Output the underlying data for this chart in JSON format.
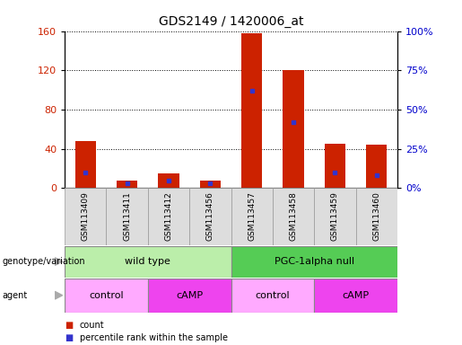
{
  "title": "GDS2149 / 1420006_at",
  "samples": [
    "GSM113409",
    "GSM113411",
    "GSM113412",
    "GSM113456",
    "GSM113457",
    "GSM113458",
    "GSM113459",
    "GSM113460"
  ],
  "counts": [
    48,
    8,
    15,
    8,
    158,
    120,
    45,
    44
  ],
  "percentile_ranks": [
    10,
    3,
    5,
    3,
    62,
    42,
    10,
    8
  ],
  "ylim_left": [
    0,
    160
  ],
  "yticks_left": [
    0,
    40,
    80,
    120,
    160
  ],
  "ylim_right": [
    0,
    100
  ],
  "yticks_right": [
    0,
    25,
    50,
    75,
    100
  ],
  "bar_color": "#cc2200",
  "dot_color": "#3333cc",
  "grid_color": "#000000",
  "genotype_groups": [
    {
      "label": "wild type",
      "span": [
        0,
        4
      ],
      "color": "#bbeeaa"
    },
    {
      "label": "PGC-1alpha null",
      "span": [
        4,
        8
      ],
      "color": "#55cc55"
    }
  ],
  "agent_groups": [
    {
      "label": "control",
      "span": [
        0,
        2
      ],
      "color": "#ffaaff"
    },
    {
      "label": "cAMP",
      "span": [
        2,
        4
      ],
      "color": "#ee44ee"
    },
    {
      "label": "control",
      "span": [
        4,
        6
      ],
      "color": "#ffaaff"
    },
    {
      "label": "cAMP",
      "span": [
        6,
        8
      ],
      "color": "#ee44ee"
    }
  ],
  "legend_items": [
    {
      "label": "count",
      "color": "#cc2200"
    },
    {
      "label": "percentile rank within the sample",
      "color": "#3333cc"
    }
  ],
  "left_label_color": "#cc2200",
  "right_label_color": "#0000cc",
  "bar_width": 0.5,
  "background_color": "#ffffff",
  "plot_bg_color": "#ffffff",
  "title_fontsize": 10,
  "label_fontsize": 6.5,
  "tick_fontsize": 8,
  "row_label_fontsize": 7,
  "row_text_fontsize": 8,
  "legend_fontsize": 7,
  "arrow_color": "#aaaaaa"
}
